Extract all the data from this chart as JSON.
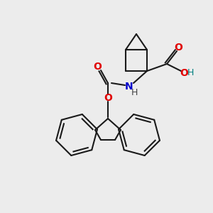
{
  "bg_color": "#ececec",
  "line_color": "#1a1a1a",
  "bond_width": 1.5,
  "atom_colors": {
    "O": "#e00000",
    "N": "#0000cc",
    "H_teal": "#008080"
  },
  "font_size": 9
}
